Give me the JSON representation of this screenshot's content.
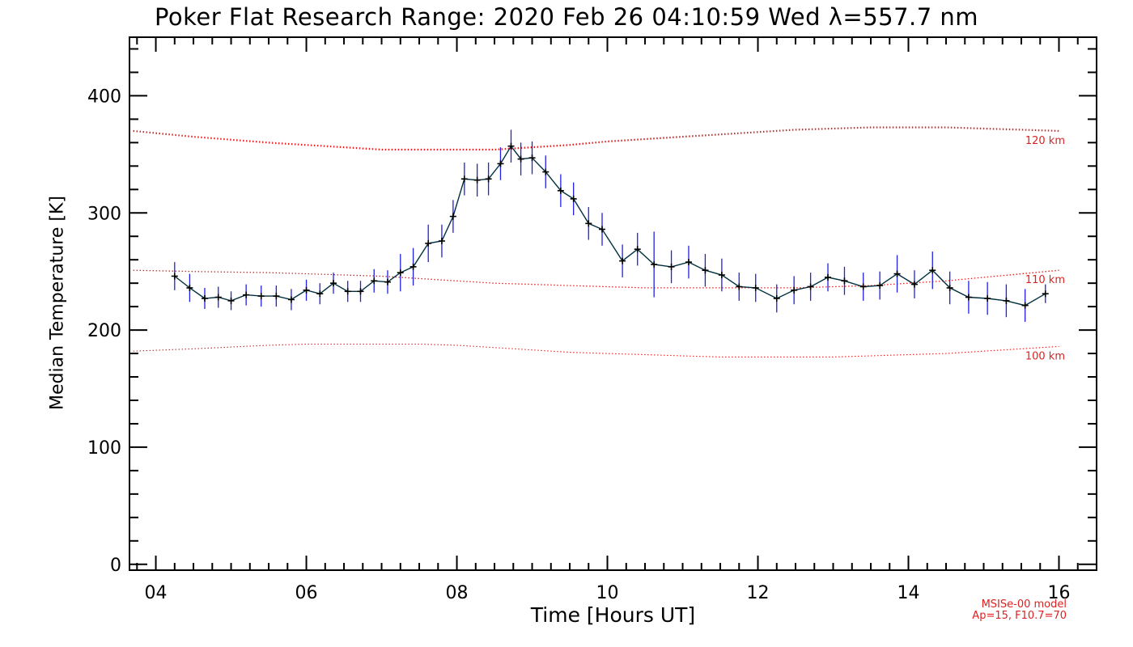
{
  "title": "Poker Flat Research Range: 2020 Feb 26 04:10:59 Wed λ=557.7 nm",
  "chart_data": {
    "type": "line",
    "title": "Poker Flat Research Range: 2020 Feb 26 04:10:59 Wed λ=557.7 nm",
    "xlabel": "Time [Hours UT]",
    "ylabel": "Median Temperature [K]",
    "xlim": [
      3.65,
      16.5
    ],
    "ylim": [
      -5,
      450
    ],
    "x_ticks": [
      4,
      6,
      8,
      10,
      12,
      14,
      16
    ],
    "x_tick_labels": [
      "04",
      "06",
      "08",
      "10",
      "12",
      "14",
      "16"
    ],
    "y_ticks": [
      0,
      100,
      200,
      300,
      400
    ],
    "y_tick_labels": [
      "0",
      "100",
      "200",
      "300",
      "400"
    ],
    "grid": false,
    "series": [
      {
        "role": "measurement",
        "color": "#003040",
        "errorbar_color": "#2020e0",
        "x": [
          4.25,
          4.45,
          4.65,
          4.83,
          5.0,
          5.2,
          5.4,
          5.6,
          5.8,
          6.0,
          6.18,
          6.36,
          6.55,
          6.72,
          6.9,
          7.08,
          7.25,
          7.42,
          7.62,
          7.8,
          7.95,
          8.1,
          8.27,
          8.42,
          8.58,
          8.72,
          8.85,
          9.0,
          9.18,
          9.38,
          9.55,
          9.75,
          9.93,
          10.2,
          10.4,
          10.62,
          10.85,
          11.08,
          11.3,
          11.52,
          11.75,
          11.97,
          12.25,
          12.48,
          12.7,
          12.93,
          13.15,
          13.4,
          13.62,
          13.85,
          14.08,
          14.32,
          14.55,
          14.8,
          15.05,
          15.3,
          15.55,
          15.82
        ],
        "y": [
          246,
          236,
          227,
          228,
          225,
          230,
          229,
          229,
          226,
          234,
          231,
          240,
          233,
          233,
          242,
          241,
          249,
          254,
          274,
          276,
          297,
          329,
          328,
          329,
          342,
          357,
          346,
          347,
          335,
          319,
          312,
          291,
          286,
          259,
          269,
          256,
          254,
          258,
          251,
          247,
          237,
          236,
          227,
          234,
          237,
          245,
          242,
          237,
          238,
          248,
          239,
          251,
          236,
          228,
          227,
          225,
          221,
          231
        ],
        "yerr": [
          12,
          12,
          9,
          9,
          8,
          9,
          9,
          9,
          9,
          9,
          9,
          9,
          9,
          9,
          10,
          10,
          16,
          16,
          16,
          14,
          14,
          14,
          14,
          14,
          14,
          14,
          14,
          14,
          14,
          14,
          14,
          14,
          14,
          14,
          14,
          28,
          14,
          14,
          14,
          14,
          12,
          12,
          12,
          12,
          12,
          12,
          12,
          12,
          12,
          16,
          12,
          16,
          14,
          14,
          14,
          14,
          14,
          8
        ]
      },
      {
        "name": "120 km",
        "role": "model",
        "color": "#e02020",
        "x": [
          3.7,
          4.5,
          5.5,
          6.5,
          7.0,
          7.5,
          8.0,
          8.5,
          9.0,
          9.5,
          10.0,
          10.5,
          11.0,
          11.5,
          12.0,
          12.5,
          13.0,
          13.5,
          14.0,
          14.5,
          15.0,
          15.5,
          16.0
        ],
        "y": [
          370,
          365,
          360,
          356,
          354,
          354,
          354,
          354,
          356,
          358,
          361,
          363,
          365,
          367,
          369,
          371,
          372,
          373,
          373,
          373,
          372,
          371,
          370
        ]
      },
      {
        "name": "110 km",
        "role": "model",
        "color": "#e02020",
        "x": [
          3.7,
          4.5,
          5.5,
          6.5,
          7.0,
          7.5,
          8.0,
          8.5,
          9.0,
          9.5,
          10.0,
          10.5,
          11.0,
          11.5,
          12.0,
          12.5,
          13.0,
          13.5,
          14.0,
          14.5,
          15.0,
          15.5,
          16.0
        ],
        "y": [
          251,
          250,
          249,
          247,
          246,
          244,
          242,
          240,
          239,
          238,
          237,
          236,
          236,
          236,
          236,
          236,
          237,
          238,
          240,
          242,
          245,
          248,
          251
        ]
      },
      {
        "name": "100 km",
        "role": "model",
        "color": "#e02020",
        "x": [
          3.7,
          4.5,
          5.5,
          6.0,
          6.5,
          7.0,
          7.5,
          8.0,
          8.5,
          9.0,
          9.5,
          10.0,
          10.5,
          11.0,
          11.5,
          12.0,
          12.5,
          13.0,
          13.5,
          14.0,
          14.5,
          15.0,
          15.5,
          16.0
        ],
        "y": [
          182,
          184,
          187,
          188,
          188,
          188,
          188,
          187,
          185,
          183,
          181,
          180,
          179,
          178,
          177,
          177,
          177,
          177,
          178,
          179,
          180,
          182,
          184,
          186
        ]
      }
    ]
  },
  "model_note": {
    "line1": "MSISe-00 model",
    "line2": "Ap=15, F10.7=70"
  }
}
